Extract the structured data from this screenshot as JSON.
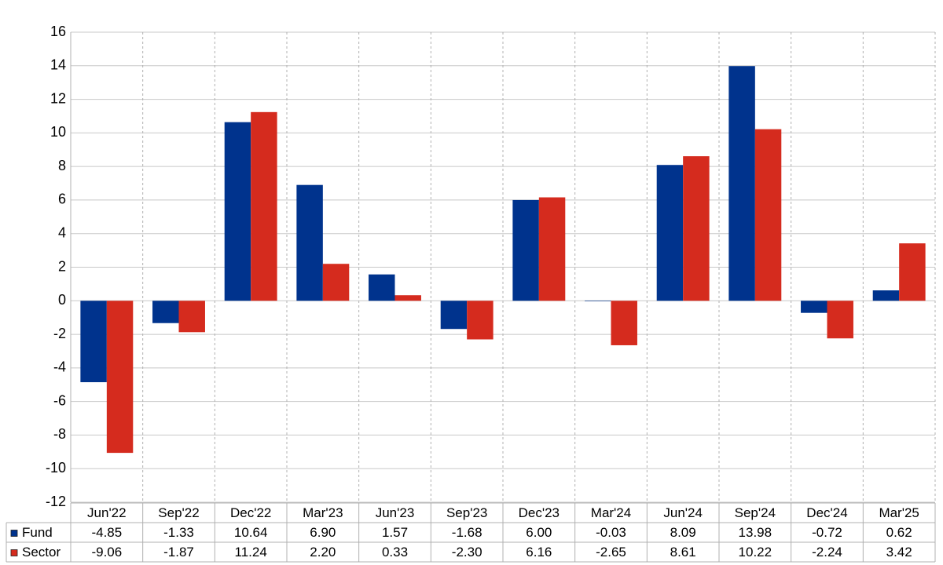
{
  "chart_data": {
    "type": "bar",
    "categories": [
      "Jun'22",
      "Sep'22",
      "Dec'22",
      "Mar'23",
      "Jun'23",
      "Sep'23",
      "Dec'23",
      "Mar'24",
      "Jun'24",
      "Sep'24",
      "Dec'24",
      "Mar'25"
    ],
    "series": [
      {
        "name": "Fund",
        "color": "#00338d",
        "values": [
          -4.85,
          -1.33,
          10.64,
          6.9,
          1.57,
          -1.68,
          6,
          -0.03,
          8.09,
          13.98,
          -0.72,
          0.62
        ],
        "value_labels": [
          "-4.85",
          "-1.33",
          "10.64",
          "6.90",
          "1.57",
          "-1.68",
          "6.00",
          "-0.03",
          "8.09",
          "13.98",
          "-0.72",
          "0.62"
        ]
      },
      {
        "name": "Sector",
        "color": "#d52b1e",
        "values": [
          -9.06,
          -1.87,
          11.24,
          2.2,
          0.33,
          -2.3,
          6.16,
          -2.65,
          8.61,
          10.22,
          -2.24,
          3.42
        ],
        "value_labels": [
          "-9.06",
          "-1.87",
          "11.24",
          "2.20",
          "0.33",
          "-2.30",
          "6.16",
          "-2.65",
          "8.61",
          "10.22",
          "-2.24",
          "3.42"
        ]
      }
    ],
    "ylim": [
      -12,
      16
    ],
    "yticks": [
      -12,
      -10,
      -8,
      -6,
      -4,
      -2,
      0,
      2,
      4,
      6,
      8,
      10,
      12,
      14,
      16
    ],
    "grid": true,
    "negative_label_color": "#e00000"
  }
}
